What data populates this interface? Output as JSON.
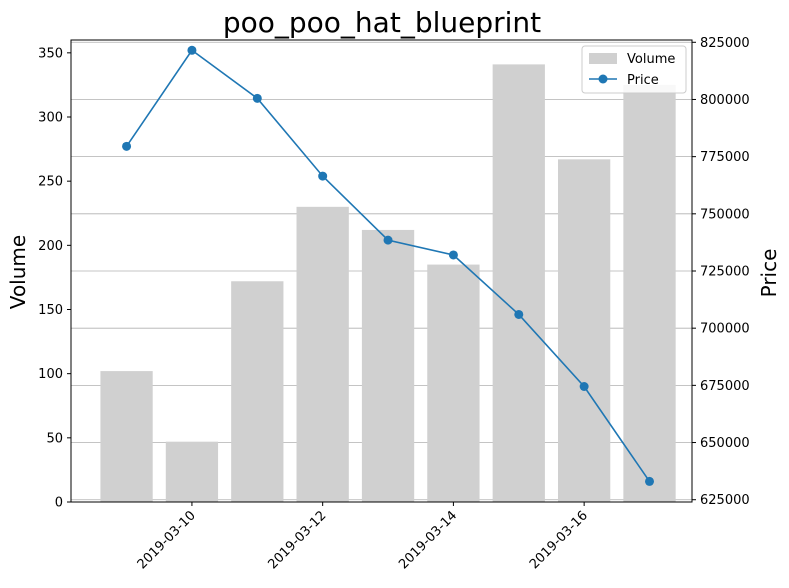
{
  "chart_data": {
    "type": "bar",
    "title": "poo_poo_hat_blueprint",
    "xlabel": "",
    "ylabel": "Volume",
    "y2label": "Price",
    "x": [
      "2019-03-09",
      "2019-03-10",
      "2019-03-11",
      "2019-03-12",
      "2019-03-13",
      "2019-03-14",
      "2019-03-15",
      "2019-03-16",
      "2019-03-17"
    ],
    "x_ticks": [
      "2019-03-10",
      "2019-03-12",
      "2019-03-14",
      "2019-03-16"
    ],
    "ylim": [
      0,
      360
    ],
    "y_ticks": [
      0,
      50,
      100,
      150,
      200,
      250,
      300,
      350
    ],
    "y2lim": [
      624000,
      826000
    ],
    "y2_ticks": [
      625000,
      650000,
      675000,
      700000,
      725000,
      750000,
      775000,
      800000,
      825000
    ],
    "grid": "horizontal, right axis",
    "legend_position": "top-right",
    "series": [
      {
        "name": "Volume",
        "type": "bar",
        "axis": "left",
        "color": "#d0d0d0",
        "values": [
          102,
          47,
          172,
          230,
          212,
          185,
          341,
          267,
          325
        ]
      },
      {
        "name": "Price",
        "type": "line",
        "axis": "right",
        "color": "#1f77b4",
        "marker": "circle",
        "values": [
          779500,
          821500,
          800500,
          766500,
          738500,
          732000,
          706000,
          674500,
          633000
        ]
      }
    ]
  }
}
